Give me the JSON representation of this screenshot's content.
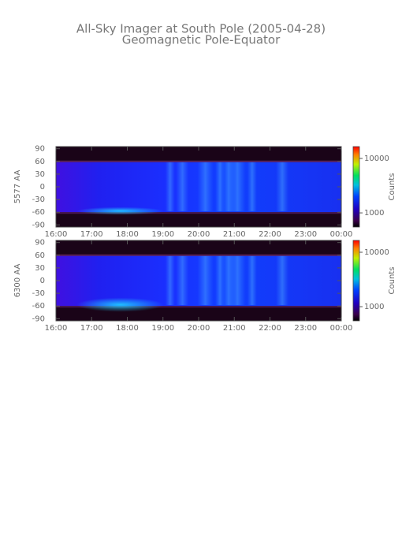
{
  "chart_data": [
    {
      "type": "heatmap",
      "title": "All-Sky Imager at South Pole (2005-04-28)",
      "subtitle": "Geomagnetic Pole-Equator",
      "ylabel": "5577 AA",
      "ylim": [
        -95,
        95
      ],
      "yticks": [
        -90,
        -60,
        -30,
        0,
        30,
        60,
        90
      ],
      "xlim": [
        16,
        24
      ],
      "xticks": [
        {
          "value": 16,
          "label": "16:00"
        },
        {
          "value": 17,
          "label": "17:00"
        },
        {
          "value": 18,
          "label": "18:00"
        },
        {
          "value": 19,
          "label": "19:00"
        },
        {
          "value": 20,
          "label": "20:00"
        },
        {
          "value": 21,
          "label": "21:00"
        },
        {
          "value": 22,
          "label": "22:00"
        },
        {
          "value": 23,
          "label": "23:00"
        },
        {
          "value": 24,
          "label": "00:00"
        }
      ],
      "colorbar": {
        "label": "Counts",
        "log": true,
        "lim": [
          550,
          16500
        ],
        "ticks": [
          1000,
          10000
        ]
      }
    },
    {
      "type": "heatmap",
      "ylabel": "6300 AA",
      "ylim": [
        -95,
        95
      ],
      "yticks": [
        -90,
        -60,
        -30,
        0,
        30,
        60,
        90
      ],
      "xlim": [
        16,
        24
      ],
      "xticks": [
        {
          "value": 16,
          "label": "16:00"
        },
        {
          "value": 17,
          "label": "17:00"
        },
        {
          "value": 18,
          "label": "18:00"
        },
        {
          "value": 19,
          "label": "19:00"
        },
        {
          "value": 20,
          "label": "20:00"
        },
        {
          "value": 21,
          "label": "21:00"
        },
        {
          "value": 22,
          "label": "22:00"
        },
        {
          "value": 23,
          "label": "23:00"
        },
        {
          "value": 24,
          "label": "00:00"
        }
      ],
      "colorbar": {
        "label": "Counts",
        "log": true,
        "lim": [
          550,
          16500
        ],
        "ticks": [
          1000,
          10000
        ]
      }
    }
  ]
}
